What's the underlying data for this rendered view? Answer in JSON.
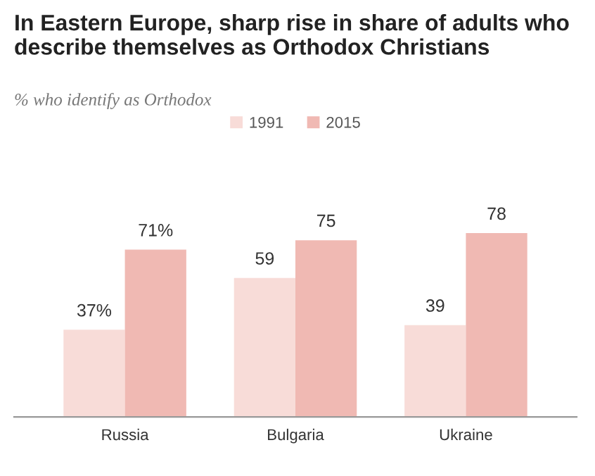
{
  "chart_data": {
    "type": "bar",
    "title": "In Eastern Europe, sharp rise in share of adults who describe themselves as Orthodox Christians",
    "subtitle": "% who identify as Orthodox",
    "categories": [
      "Russia",
      "Bulgaria",
      "Ukraine"
    ],
    "series": [
      {
        "name": "1991",
        "color": "#f8dcd8",
        "values": [
          37,
          59,
          39
        ],
        "value_labels": [
          "37%",
          "59",
          "39"
        ]
      },
      {
        "name": "2015",
        "color": "#f0b9b3",
        "values": [
          71,
          75,
          78
        ],
        "value_labels": [
          "71%",
          "75",
          "78"
        ]
      }
    ],
    "legend": "top",
    "grid": false
  }
}
